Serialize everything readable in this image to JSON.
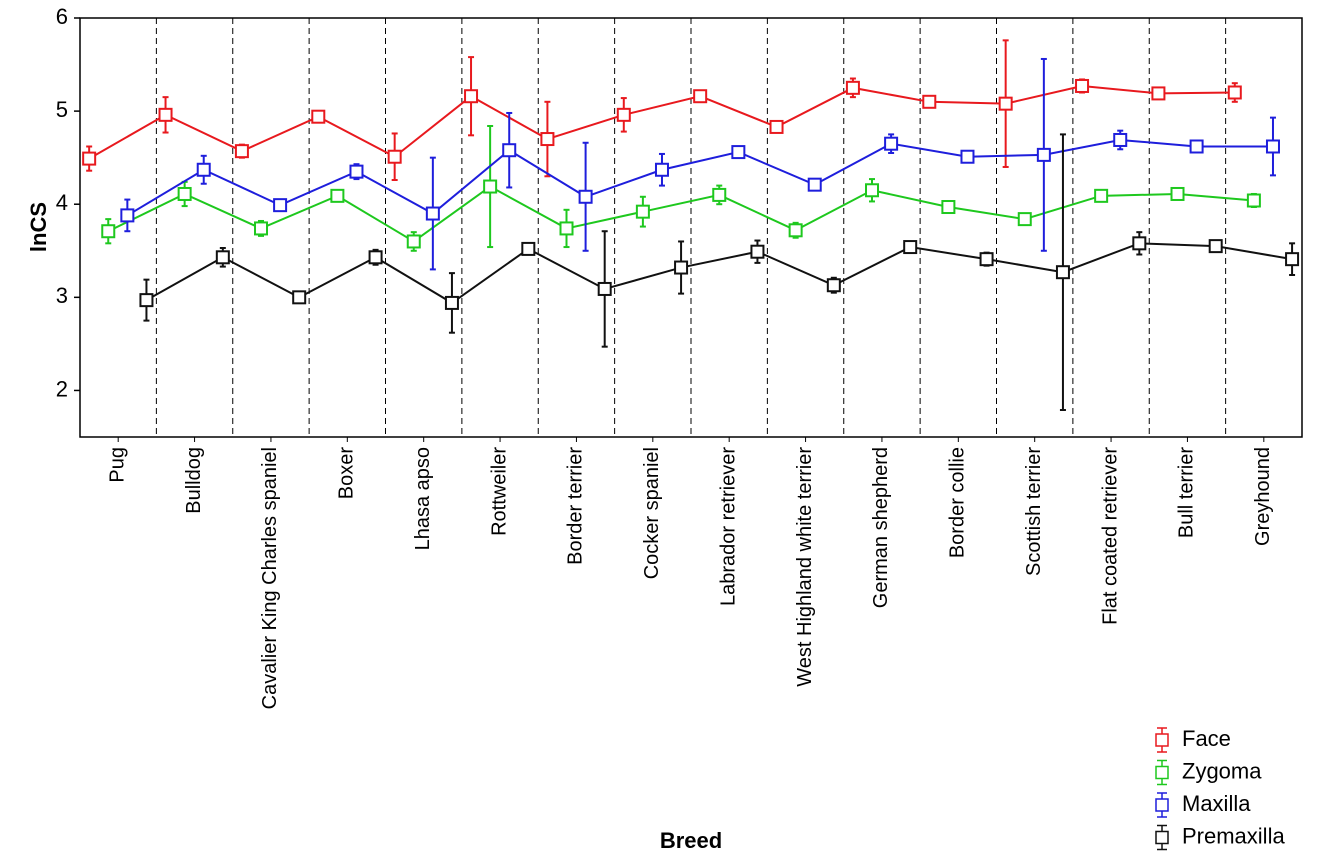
{
  "chart_data": {
    "type": "line",
    "x_label": "Breed",
    "y_label": "lnCS",
    "categories": [
      "Pug",
      "Bulldog",
      "Cavalier King Charles spaniel",
      "Boxer",
      "Lhasa apso",
      "Rottweiler",
      "Border terrier",
      "Cocker spaniel",
      "Labrador retriever",
      "West Highland white terrier",
      "German shepherd",
      "Border collie",
      "Scottish terrier",
      "Flat coated retriever",
      "Bull terrier",
      "Greyhound"
    ],
    "ylim": [
      1.5,
      6
    ],
    "yticks": [
      2,
      3,
      4,
      5,
      6
    ],
    "category_dividers": true,
    "legend_position": "lower right",
    "series": [
      {
        "name": "Face",
        "color": "#e8191e",
        "values": [
          4.49,
          4.96,
          4.57,
          4.94,
          4.51,
          5.16,
          4.7,
          4.96,
          5.16,
          4.83,
          5.25,
          5.1,
          5.08,
          5.27,
          5.19,
          5.2
        ],
        "errors": [
          0.13,
          0.19,
          0.07,
          0.03,
          0.25,
          0.42,
          0.4,
          0.18,
          0.03,
          0.03,
          0.1,
          0.03,
          0.68,
          0.07,
          0.03,
          0.1
        ]
      },
      {
        "name": "Zygoma",
        "color": "#1ec81e",
        "values": [
          3.71,
          4.11,
          3.74,
          4.09,
          3.6,
          4.19,
          3.74,
          3.92,
          4.1,
          3.72,
          4.15,
          3.97,
          3.84,
          4.09,
          4.11,
          4.04
        ],
        "errors": [
          0.13,
          0.13,
          0.08,
          0.03,
          0.1,
          0.65,
          0.2,
          0.16,
          0.1,
          0.08,
          0.12,
          0.05,
          0.05,
          0.05,
          0.03,
          0.07
        ]
      },
      {
        "name": "Maxilla",
        "color": "#1e1edc",
        "values": [
          3.88,
          4.37,
          3.99,
          4.35,
          3.9,
          4.58,
          4.08,
          4.37,
          4.56,
          4.21,
          4.65,
          4.51,
          4.53,
          4.69,
          4.62,
          4.62
        ],
        "errors": [
          0.17,
          0.15,
          0.03,
          0.08,
          0.6,
          0.4,
          0.58,
          0.17,
          0.03,
          0.03,
          0.1,
          0.03,
          1.03,
          0.1,
          0.03,
          0.31
        ]
      },
      {
        "name": "Premaxilla",
        "color": "#111111",
        "values": [
          2.97,
          3.43,
          3.0,
          3.43,
          2.94,
          3.52,
          3.09,
          3.32,
          3.49,
          3.13,
          3.54,
          3.41,
          3.27,
          3.58,
          3.55,
          3.41
        ],
        "errors": [
          0.22,
          0.1,
          0.03,
          0.08,
          0.32,
          0.03,
          0.62,
          0.28,
          0.12,
          0.08,
          0.05,
          0.07,
          1.48,
          0.12,
          0.03,
          0.17
        ]
      }
    ]
  }
}
